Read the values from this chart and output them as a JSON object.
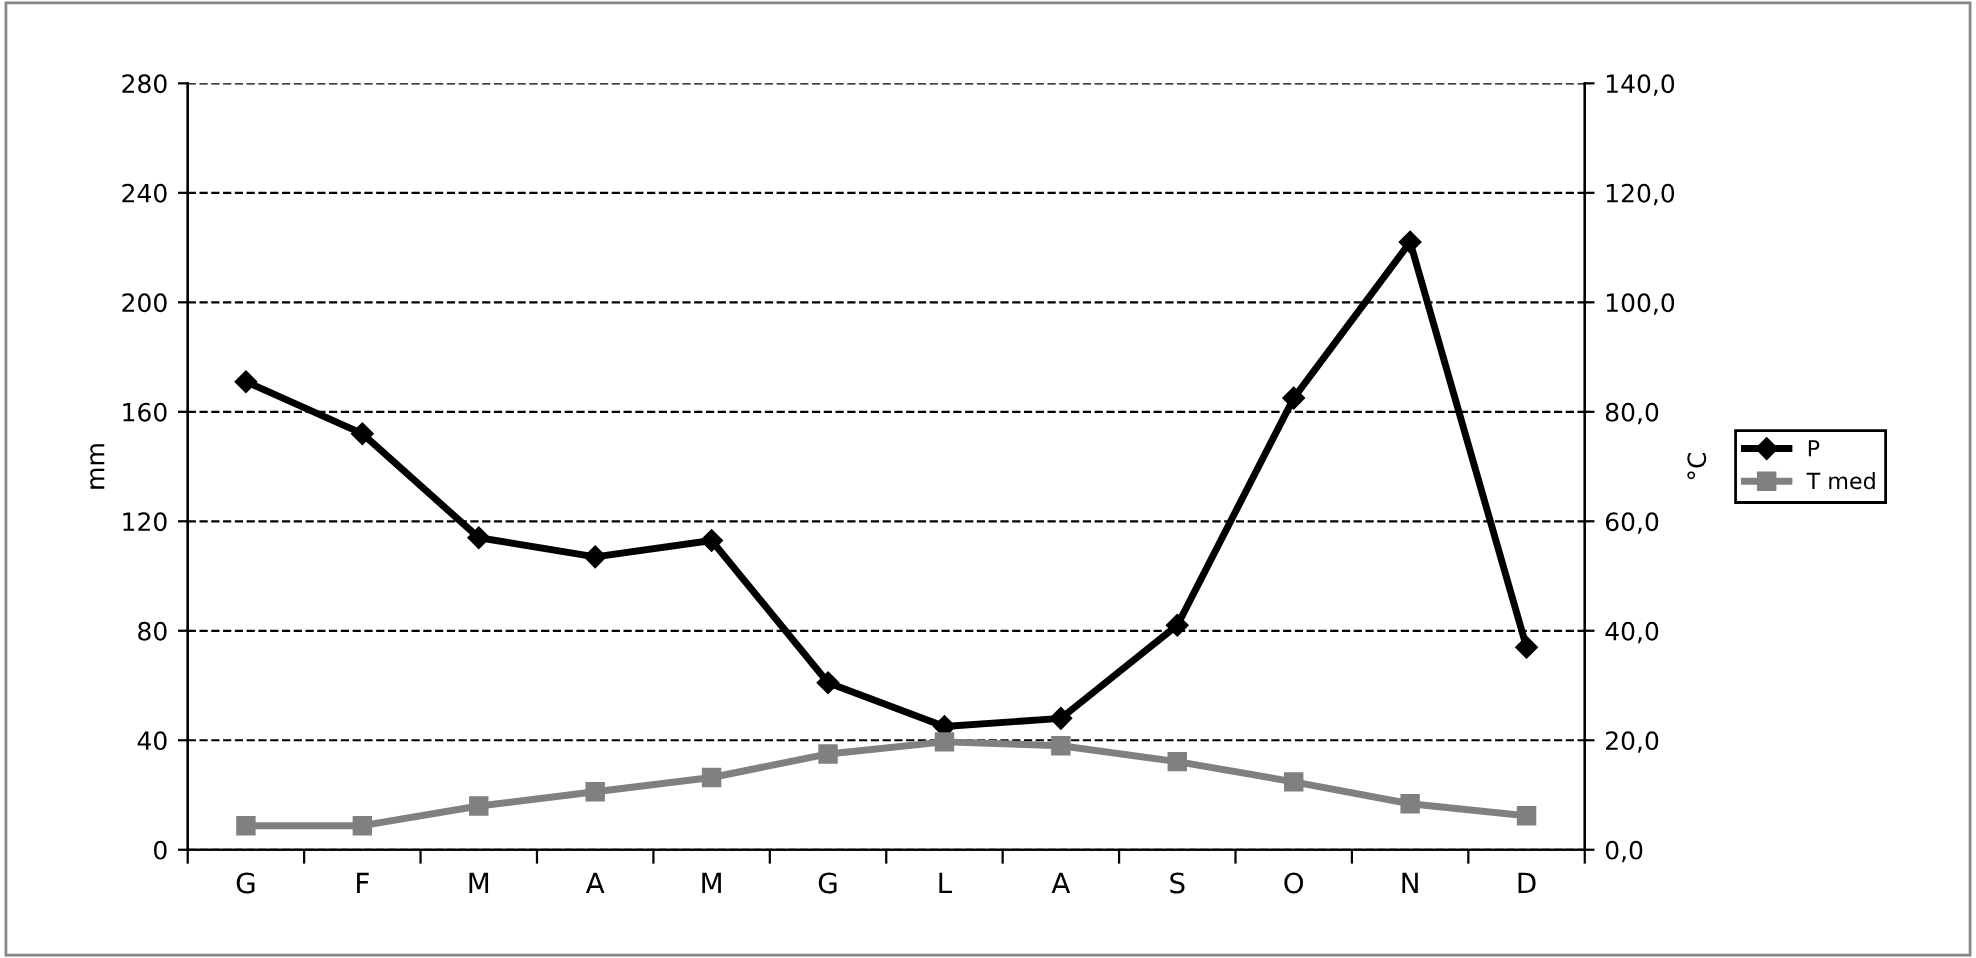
{
  "chart_data": {
    "type": "line",
    "categories": [
      "G",
      "F",
      "M",
      "A",
      "M",
      "G",
      "L",
      "A",
      "S",
      "O",
      "N",
      "D"
    ],
    "ylabel": "mm",
    "y2label": "°C",
    "series": [
      {
        "name": "P",
        "color": "#000000",
        "marker": "diamond",
        "values": [
          171,
          152,
          114,
          107,
          113,
          61,
          45,
          48,
          82,
          165,
          222,
          74
        ]
      },
      {
        "name": "T med",
        "color": "#808080",
        "marker": "square",
        "axis": "y2",
        "values": [
          4.4,
          4.4,
          8.0,
          10.6,
          13.2,
          17.5,
          19.7,
          19.0,
          16.1,
          12.4,
          8.4,
          6.2
        ]
      }
    ],
    "ylim": [
      0,
      280
    ],
    "yticks": [
      0,
      40,
      80,
      120,
      160,
      200,
      240,
      280
    ],
    "y2lim": [
      0,
      140
    ],
    "y2ticks": [
      {
        "value": 0,
        "label": "0,0"
      },
      {
        "value": 20,
        "label": "20,0"
      },
      {
        "value": 40,
        "label": "40,0"
      },
      {
        "value": 60,
        "label": "60,0"
      },
      {
        "value": 80,
        "label": "80,0"
      },
      {
        "value": 100,
        "label": "100,0"
      },
      {
        "value": 120,
        "label": "120,0"
      },
      {
        "value": 140,
        "label": "140,0"
      }
    ],
    "grid": "y",
    "legend": "right",
    "line_style": "solid"
  }
}
